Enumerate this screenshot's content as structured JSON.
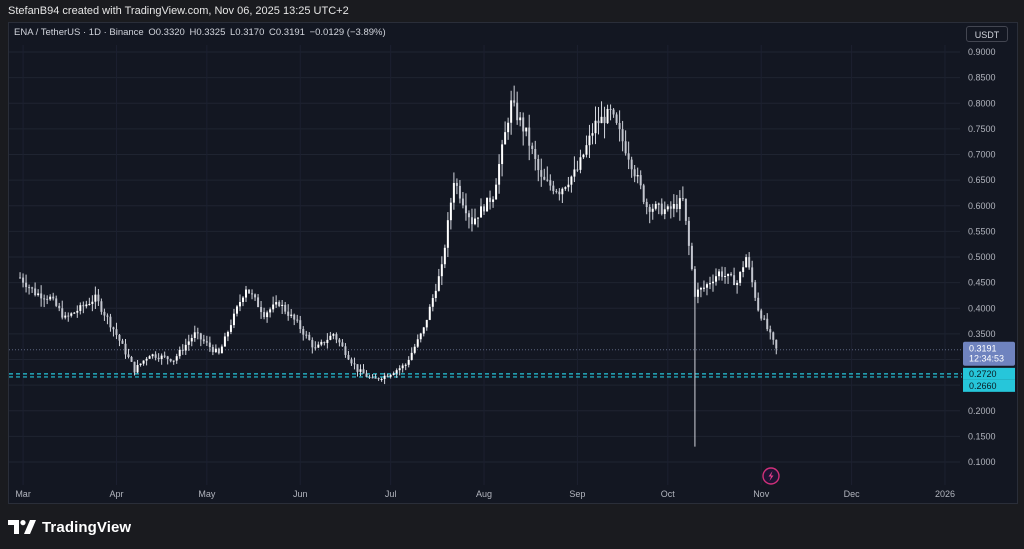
{
  "header": {
    "attribution": "StefanB94 created with TradingView.com, Nov 06, 2025 13:25 UTC+2"
  },
  "legend": {
    "symbol": "ENA / TetherUS · 1D · Binance",
    "open": "O0.3320",
    "high": "H0.3325",
    "low": "L0.3170",
    "close": "C0.3191",
    "change": "−0.0129 (−3.89%)"
  },
  "toolbar": {
    "currency_label": "USDT"
  },
  "price_axis": {
    "ticks": [
      "0.9000",
      "0.8500",
      "0.8000",
      "0.7500",
      "0.7000",
      "0.6500",
      "0.6000",
      "0.5500",
      "0.5000",
      "0.4500",
      "0.4000",
      "0.3500",
      "0.3000",
      "0.2500",
      "0.2000",
      "0.1500",
      "0.1000"
    ],
    "last_price": "0.3191",
    "countdown": "12:34:53",
    "level_upper": "0.2720",
    "level_lower": "0.2660"
  },
  "time_axis": {
    "labels": [
      "Mar",
      "Apr",
      "May",
      "Jun",
      "Jul",
      "Aug",
      "Sep",
      "Oct",
      "Nov",
      "Dec",
      "2026"
    ]
  },
  "footer": {
    "brand": "TradingView"
  },
  "colors": {
    "background": "#131722",
    "candle": "#d1d4dc",
    "level": "#26c6da",
    "last_price_tag": "#6f83bf"
  },
  "chart_data": {
    "type": "candlestick",
    "symbol": "ENA / TetherUS",
    "interval": "1D",
    "exchange": "Binance",
    "ylim": [
      0.1,
      0.9
    ],
    "x_labels": [
      "Mar",
      "Apr",
      "May",
      "Jun",
      "Jul",
      "Aug",
      "Sep",
      "Oct",
      "Nov",
      "Dec",
      "2026"
    ],
    "horizontal_levels": [
      0.272,
      0.266
    ],
    "last_close": 0.3191,
    "approx_closes": [
      {
        "date": "2025-02-28",
        "close": 0.46
      },
      {
        "date": "2025-03-05",
        "close": 0.43
      },
      {
        "date": "2025-03-10",
        "close": 0.42
      },
      {
        "date": "2025-03-15",
        "close": 0.38
      },
      {
        "date": "2025-03-20",
        "close": 0.4
      },
      {
        "date": "2025-03-25",
        "close": 0.42
      },
      {
        "date": "2025-03-31",
        "close": 0.36
      },
      {
        "date": "2025-04-07",
        "close": 0.28
      },
      {
        "date": "2025-04-12",
        "close": 0.31
      },
      {
        "date": "2025-04-20",
        "close": 0.3
      },
      {
        "date": "2025-04-27",
        "close": 0.35
      },
      {
        "date": "2025-05-05",
        "close": 0.31
      },
      {
        "date": "2025-05-11",
        "close": 0.4
      },
      {
        "date": "2025-05-14",
        "close": 0.44
      },
      {
        "date": "2025-05-20",
        "close": 0.39
      },
      {
        "date": "2025-05-25",
        "close": 0.41
      },
      {
        "date": "2025-05-31",
        "close": 0.37
      },
      {
        "date": "2025-06-06",
        "close": 0.32
      },
      {
        "date": "2025-06-12",
        "close": 0.35
      },
      {
        "date": "2025-06-20",
        "close": 0.28
      },
      {
        "date": "2025-06-25",
        "close": 0.26
      },
      {
        "date": "2025-06-30",
        "close": 0.27
      },
      {
        "date": "2025-07-06",
        "close": 0.29
      },
      {
        "date": "2025-07-12",
        "close": 0.36
      },
      {
        "date": "2025-07-18",
        "close": 0.48
      },
      {
        "date": "2025-07-22",
        "close": 0.65
      },
      {
        "date": "2025-07-28",
        "close": 0.57
      },
      {
        "date": "2025-08-04",
        "close": 0.62
      },
      {
        "date": "2025-08-10",
        "close": 0.8
      },
      {
        "date": "2025-08-15",
        "close": 0.74
      },
      {
        "date": "2025-08-20",
        "close": 0.65
      },
      {
        "date": "2025-08-26",
        "close": 0.63
      },
      {
        "date": "2025-09-01",
        "close": 0.67
      },
      {
        "date": "2025-09-07",
        "close": 0.76
      },
      {
        "date": "2025-09-12",
        "close": 0.78
      },
      {
        "date": "2025-09-18",
        "close": 0.7
      },
      {
        "date": "2025-09-24",
        "close": 0.6
      },
      {
        "date": "2025-10-01",
        "close": 0.59
      },
      {
        "date": "2025-10-06",
        "close": 0.61
      },
      {
        "date": "2025-10-10",
        "close": 0.43
      },
      {
        "date": "2025-10-13",
        "close": 0.44
      },
      {
        "date": "2025-10-18",
        "close": 0.47
      },
      {
        "date": "2025-10-24",
        "close": 0.45
      },
      {
        "date": "2025-10-27",
        "close": 0.5
      },
      {
        "date": "2025-10-31",
        "close": 0.4
      },
      {
        "date": "2025-11-06",
        "close": 0.3191
      }
    ]
  }
}
